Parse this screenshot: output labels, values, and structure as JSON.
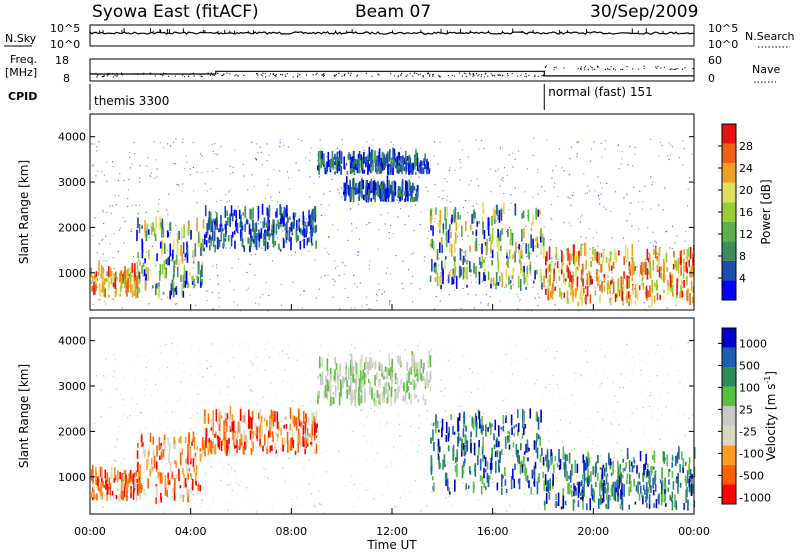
{
  "header": {
    "station": "Syowa East (fitACF)",
    "beam": "Beam 07",
    "date": "30/Sep/2009"
  },
  "colors": {
    "power": [
      "#0000ff",
      "#1a4fb0",
      "#3a8f5a",
      "#5ab04a",
      "#9acd32",
      "#e0e060",
      "#f0a020",
      "#f06010",
      "#e81010"
    ],
    "velocity": [
      "#ff0000",
      "#ff6000",
      "#ff9c20",
      "#d8d8c0",
      "#c8c8c8",
      "#5ac040",
      "#2e8b57",
      "#1e5fb0",
      "#0000cc"
    ]
  },
  "chart_data": [
    {
      "type": "line",
      "panel": "sky/search noise",
      "left_label": "N.Sky",
      "right_label": "N.Search",
      "right_legend_style": "dotted",
      "left_ticks": [
        "10^5",
        "10^0"
      ],
      "right_ticks": [
        "10^5",
        "10^0"
      ],
      "x": [
        "00:00",
        "24:00"
      ],
      "sky_level": "10^5"
    },
    {
      "type": "line",
      "panel": "frequency / nave",
      "left_label": [
        "Freq.",
        "[MHz]"
      ],
      "right_label": "Nave",
      "right_legend_style": "dotted",
      "left_ticks": [
        "18",
        "8"
      ],
      "right_ticks": [
        "60",
        "0"
      ],
      "ylim_left": [
        8,
        18
      ],
      "ylim_right": [
        0,
        60
      ],
      "freq_steps": [
        {
          "start_h": 0,
          "end_h": 5,
          "mhz": 11.2
        },
        {
          "start_h": 5,
          "end_h": 18.05,
          "mhz": 12.4
        },
        {
          "start_h": 18.05,
          "end_h": 24,
          "mhz": 10.3
        }
      ]
    },
    {
      "type": "table",
      "panel": "CPID",
      "label": "CPID",
      "modes": [
        {
          "name": "themis 3300",
          "start_h": 0,
          "end_h": 18.05
        },
        {
          "name": "normal (fast) 151",
          "start_h": 18.05,
          "end_h": 24
        }
      ]
    },
    {
      "type": "heatmap",
      "panel": "power",
      "ylabel": "Slant Range [km]",
      "y_ticks": [
        "1000",
        "2000",
        "3000",
        "4000"
      ],
      "ylim": [
        180,
        4500
      ],
      "colorbar_label": "Power [dB]",
      "colorbar_ticks": [
        "4",
        "8",
        "12",
        "16",
        "20",
        "24",
        "28"
      ],
      "clim": [
        0,
        30
      ],
      "echo_regions": [
        {
          "t0": 0.0,
          "t1": 2.0,
          "r0": 450,
          "r1": 1000,
          "level": "high"
        },
        {
          "t0": 1.8,
          "t1": 4.5,
          "r0": 400,
          "r1": 2000,
          "level": "medium"
        },
        {
          "t0": 4.5,
          "t1": 9.0,
          "r0": 1450,
          "r1": 2300,
          "level": "low"
        },
        {
          "t0": 9.0,
          "t1": 13.5,
          "r0": 3150,
          "r1": 3500,
          "level": "low"
        },
        {
          "t0": 10.0,
          "t1": 13.0,
          "r0": 2550,
          "r1": 2850,
          "level": "low"
        },
        {
          "t0": 13.5,
          "t1": 18.0,
          "r0": 600,
          "r1": 2300,
          "level": "medium"
        },
        {
          "t0": 18.0,
          "t1": 24.0,
          "r0": 250,
          "r1": 1400,
          "level": "high"
        }
      ]
    },
    {
      "type": "heatmap",
      "panel": "velocity",
      "ylabel": "Slant Range [km]",
      "y_ticks": [
        "1000",
        "2000",
        "3000",
        "4000"
      ],
      "ylim": [
        180,
        4500
      ],
      "xlabel": "Time UT",
      "x_ticks": [
        "00:00",
        "04:00",
        "08:00",
        "12:00",
        "16:00",
        "20:00",
        "00:00"
      ],
      "xlim_hours": [
        0,
        24
      ],
      "colorbar_label": "Velocity [m s",
      "colorbar_label_superscript": "-1",
      "colorbar_label_close": "]",
      "colorbar_ticks": [
        "1000",
        "500",
        "100",
        "25",
        "-25",
        "-100",
        "-500",
        "-1000"
      ],
      "echo_regions": [
        {
          "t0": 0.0,
          "t1": 2.0,
          "r0": 450,
          "r1": 1000,
          "sign": "neg"
        },
        {
          "t0": 1.8,
          "t1": 4.5,
          "r0": 400,
          "r1": 1800,
          "sign": "neg"
        },
        {
          "t0": 4.5,
          "t1": 9.0,
          "r0": 1450,
          "r1": 2300,
          "sign": "neg"
        },
        {
          "t0": 9.0,
          "t1": 13.5,
          "r0": 2550,
          "r1": 3500,
          "sign": "zero"
        },
        {
          "t0": 13.5,
          "t1": 18.0,
          "r0": 600,
          "r1": 2300,
          "sign": "pos"
        },
        {
          "t0": 18.0,
          "t1": 24.0,
          "r0": 250,
          "r1": 1400,
          "sign": "pos"
        }
      ]
    }
  ]
}
